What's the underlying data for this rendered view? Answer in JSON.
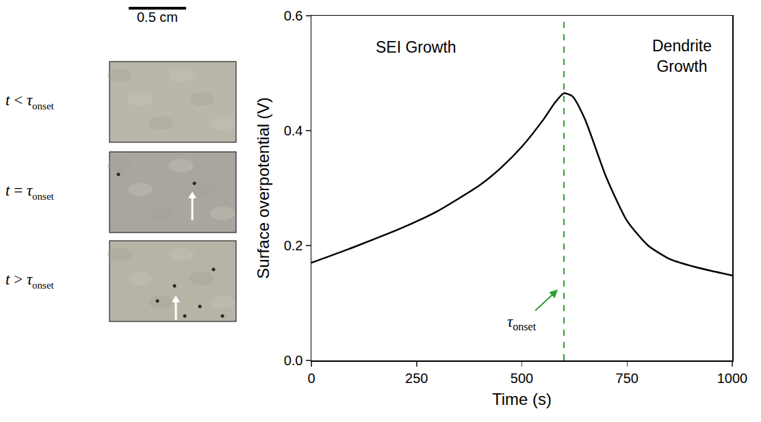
{
  "chart_data": {
    "type": "line",
    "x": [
      0,
      100,
      200,
      250,
      300,
      400,
      450,
      500,
      550,
      580,
      600,
      620,
      650,
      700,
      750,
      800,
      850,
      900,
      950,
      1000
    ],
    "series": [
      {
        "name": "Surface overpotential",
        "color": "#000000",
        "line_style": "solid",
        "values": [
          0.17,
          0.197,
          0.226,
          0.242,
          0.26,
          0.305,
          0.335,
          0.372,
          0.418,
          0.45,
          0.465,
          0.46,
          0.42,
          0.32,
          0.243,
          0.2,
          0.177,
          0.165,
          0.156,
          0.148
        ]
      }
    ],
    "xlabel": "Time (s)",
    "ylabel": "Surface overpotential (V)",
    "xlim": [
      0,
      1000
    ],
    "xticks": [
      0,
      250,
      500,
      750,
      1000
    ],
    "ylim": [
      0,
      0.6
    ],
    "yticks": [
      {
        "value": 0,
        "label": "0.0"
      },
      0.2,
      0.4,
      0.6
    ],
    "grid": false,
    "vlines": [
      {
        "x": 600,
        "color": "#2ca02c",
        "line_style": "dash"
      }
    ],
    "annotations": [
      {
        "text": "SEI Growth",
        "x": 248,
        "y": 0.545
      },
      {
        "text": "Dendrite Growth",
        "x": 880,
        "y": 0.53
      },
      {
        "symbol": "τ",
        "subscript": "onset",
        "x": 500,
        "y": 0.065,
        "arrow_to": [
          588,
          0.125
        ],
        "color": "#2ca02c"
      }
    ]
  },
  "images_panel": {
    "scale_bar": "0.5 cm",
    "rows": [
      {
        "lhs": "t",
        "relation": "<",
        "symbol": "τ",
        "subscript": "onset"
      },
      {
        "lhs": "t",
        "relation": "=",
        "symbol": "τ",
        "subscript": "onset"
      },
      {
        "lhs": "t",
        "relation": ">",
        "symbol": "τ",
        "subscript": "onset"
      }
    ]
  }
}
